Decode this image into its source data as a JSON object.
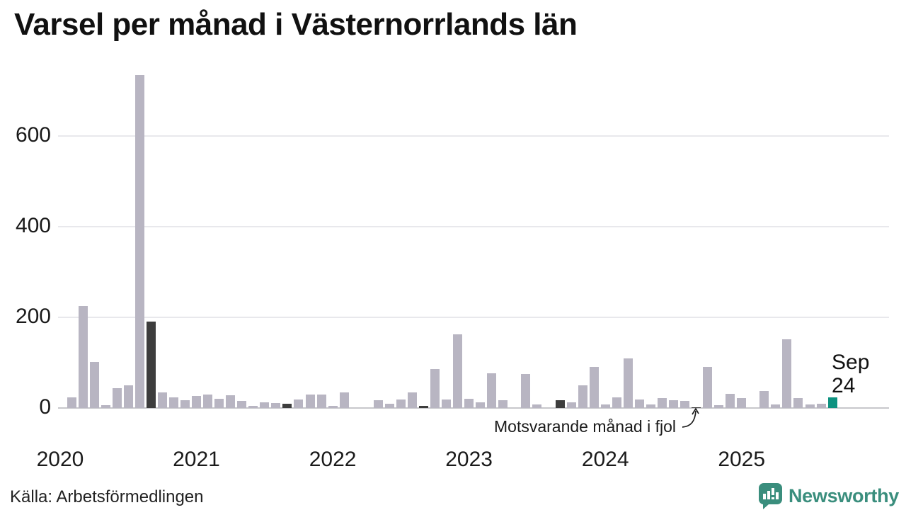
{
  "title": "Varsel per månad i Västernorrlands län",
  "source": "Källa: Arbetsförmedlingen",
  "annotation": {
    "text": "Motsvarande månad i fjol"
  },
  "current_label": {
    "month": "Sep",
    "value": "24"
  },
  "branding": {
    "logo_text": "Newsworthy",
    "logo_color": "#3a8e7d"
  },
  "colors": {
    "bar": "#b8b5c2",
    "highlight": "#3d3d3d",
    "current": "#0e9280",
    "grid": "#e8e8ec",
    "axis": "#c7c7cb",
    "text": "#1a1a1a"
  },
  "chart_data": {
    "type": "bar",
    "title": "Varsel per månad i Västernorrlands län",
    "xlabel": "",
    "ylabel": "",
    "grid": true,
    "legend": false,
    "ylim": [
      0,
      760
    ],
    "yticks": [
      0,
      200,
      400,
      600
    ],
    "year_ticks": [
      "2020",
      "2021",
      "2022",
      "2023",
      "2024",
      "2025"
    ],
    "categories": [
      "2020-01",
      "2020-02",
      "2020-03",
      "2020-04",
      "2020-05",
      "2020-06",
      "2020-07",
      "2020-08",
      "2020-09",
      "2020-10",
      "2020-11",
      "2020-12",
      "2021-01",
      "2021-02",
      "2021-03",
      "2021-04",
      "2021-05",
      "2021-06",
      "2021-07",
      "2021-08",
      "2021-09",
      "2021-10",
      "2021-11",
      "2021-12",
      "2022-01",
      "2022-02",
      "2022-03",
      "2022-04",
      "2022-05",
      "2022-06",
      "2022-07",
      "2022-08",
      "2022-09",
      "2022-10",
      "2022-11",
      "2022-12",
      "2023-01",
      "2023-02",
      "2023-03",
      "2023-04",
      "2023-05",
      "2023-06",
      "2023-07",
      "2023-08",
      "2023-09",
      "2023-10",
      "2023-11",
      "2023-12",
      "2024-01",
      "2024-02",
      "2024-03",
      "2024-04",
      "2024-05",
      "2024-06",
      "2024-07",
      "2024-08",
      "2024-09",
      "2024-10",
      "2024-11",
      "2024-12",
      "2025-01",
      "2025-02",
      "2025-03",
      "2025-04",
      "2025-05",
      "2025-06",
      "2025-07",
      "2025-08",
      "2025-09"
    ],
    "series": [
      {
        "name": "Varsel",
        "values": [
          0,
          23,
          225,
          101,
          7,
          44,
          50,
          735,
          190,
          34,
          24,
          18,
          27,
          30,
          21,
          28,
          16,
          4,
          13,
          11,
          9,
          19,
          30,
          29,
          5,
          34,
          0,
          0,
          18,
          9,
          19,
          34,
          5,
          86,
          19,
          163,
          20,
          12,
          76,
          17,
          0,
          75,
          8,
          0,
          18,
          13,
          50,
          91,
          8,
          23,
          110,
          19,
          8,
          22,
          18,
          15,
          2,
          91,
          6,
          32,
          22,
          0,
          37,
          8,
          152,
          22,
          8,
          10,
          24
        ]
      }
    ],
    "highlight_indexes": [
      8,
      20,
      32,
      44,
      56
    ],
    "current_index": 68,
    "annotation_index": 56
  }
}
